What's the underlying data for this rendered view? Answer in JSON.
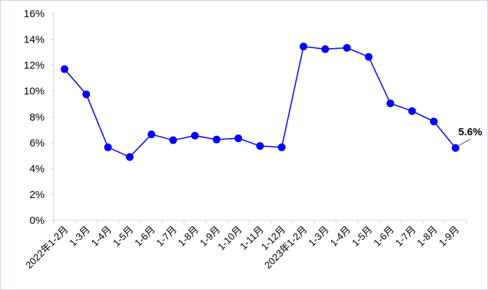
{
  "chart_data": {
    "type": "line",
    "title": "",
    "xlabel": "",
    "ylabel": "",
    "categories": [
      "2022年1-2月",
      "1-3月",
      "1-4月",
      "1-5月",
      "1-6月",
      "1-7月",
      "1-8月",
      "1-9月",
      "1-10月",
      "1-11月",
      "1-12月",
      "2023年1-2月",
      "1-3月",
      "1-4月",
      "1-5月",
      "1-6月",
      "1-7月",
      "1-8月",
      "1-9月"
    ],
    "values": [
      11.7,
      9.75,
      5.65,
      4.9,
      6.65,
      6.2,
      6.55,
      6.25,
      6.35,
      5.75,
      5.65,
      13.45,
      13.25,
      13.35,
      12.65,
      9.05,
      8.45,
      7.65,
      5.6
    ],
    "ylim": [
      0,
      16
    ],
    "yticks": [
      0,
      2,
      4,
      6,
      8,
      10,
      12,
      14,
      16
    ],
    "ytick_labels": [
      "0%",
      "2%",
      "4%",
      "6%",
      "8%",
      "10%",
      "12%",
      "14%",
      "16%"
    ],
    "annotation": {
      "index": 18,
      "text": "5.6%"
    },
    "grid": false,
    "legend": "none",
    "line_color": "#0000ff",
    "marker_color": "#0000ff"
  }
}
